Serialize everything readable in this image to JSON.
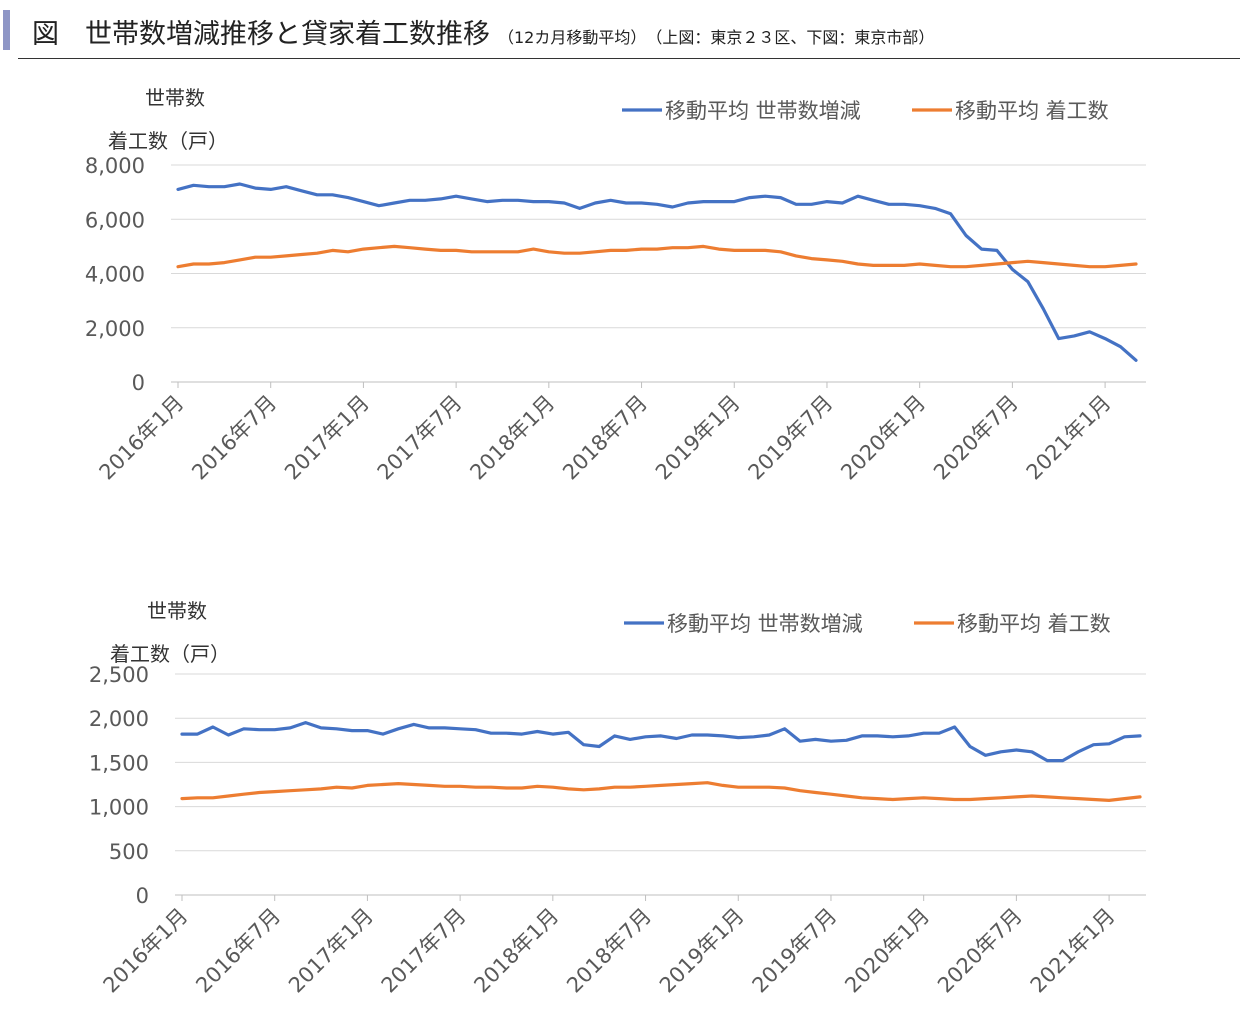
{
  "title": {
    "figure_label": "図",
    "main": "世帯数増減推移と貸家着工数推移",
    "sub": "（12カ月移動平均）　（上図：東京２３区、下図：東京市部）"
  },
  "colors": {
    "blue": "#4472c4",
    "orange": "#ed7d31",
    "grid": "#d9d9d9",
    "axis": "#bfbfbf",
    "text": "#595959"
  },
  "x_tick_labels": [
    "2016年1月",
    "2016年7月",
    "2017年1月",
    "2017年7月",
    "2018年1月",
    "2018年7月",
    "2019年1月",
    "2019年7月",
    "2020年1月",
    "2020年7月",
    "2021年1月"
  ],
  "chart_data": [
    {
      "type": "line",
      "ylabel_line1": "世帯数",
      "ylabel_line2": "着工数（戸）",
      "ylim": [
        0,
        8000
      ],
      "yticks": [
        0,
        2000,
        4000,
        6000,
        8000
      ],
      "ytick_labels": [
        "0",
        "2,000",
        "4,000",
        "6,000",
        "8,000"
      ],
      "grid": true,
      "legend_position": "top-right",
      "series": [
        {
          "name": "移動平均 世帯数増減",
          "color": "#4472c4",
          "values": [
            7100,
            7250,
            7200,
            7200,
            7300,
            7150,
            7100,
            7200,
            7050,
            6900,
            6900,
            6800,
            6650,
            6500,
            6600,
            6700,
            6700,
            6750,
            6850,
            6750,
            6650,
            6700,
            6700,
            6650,
            6650,
            6600,
            6400,
            6600,
            6700,
            6600,
            6600,
            6550,
            6450,
            6600,
            6650,
            6650,
            6650,
            6800,
            6850,
            6800,
            6550,
            6550,
            6650,
            6600,
            6850,
            6700,
            6550,
            6550,
            6500,
            6400,
            6200,
            5400,
            4900,
            4850,
            4150,
            3700,
            2700,
            1600,
            1700,
            1850,
            1600,
            1300,
            800
          ]
        },
        {
          "name": "移動平均 着工数",
          "color": "#ed7d31",
          "values": [
            4250,
            4350,
            4350,
            4400,
            4500,
            4600,
            4600,
            4650,
            4700,
            4750,
            4850,
            4800,
            4900,
            4950,
            5000,
            4950,
            4900,
            4850,
            4850,
            4800,
            4800,
            4800,
            4800,
            4900,
            4800,
            4750,
            4750,
            4800,
            4850,
            4850,
            4900,
            4900,
            4950,
            4950,
            5000,
            4900,
            4850,
            4850,
            4850,
            4800,
            4650,
            4550,
            4500,
            4450,
            4350,
            4300,
            4300,
            4300,
            4350,
            4300,
            4250,
            4250,
            4300,
            4350,
            4400,
            4450,
            4400,
            4350,
            4300,
            4250,
            4250,
            4300,
            4350
          ]
        }
      ]
    },
    {
      "type": "line",
      "ylabel_line1": "世帯数",
      "ylabel_line2": "着工数（戸）",
      "ylim": [
        0,
        2500
      ],
      "yticks": [
        0,
        500,
        1000,
        1500,
        2000,
        2500
      ],
      "ytick_labels": [
        "0",
        "500",
        "1,000",
        "1,500",
        "2,000",
        "2,500"
      ],
      "grid": true,
      "legend_position": "top-right",
      "series": [
        {
          "name": "移動平均 世帯数増減",
          "color": "#4472c4",
          "values": [
            1820,
            1820,
            1900,
            1810,
            1880,
            1870,
            1870,
            1890,
            1950,
            1890,
            1880,
            1860,
            1860,
            1820,
            1880,
            1930,
            1890,
            1890,
            1880,
            1870,
            1830,
            1830,
            1820,
            1850,
            1820,
            1840,
            1700,
            1680,
            1800,
            1760,
            1790,
            1800,
            1770,
            1810,
            1810,
            1800,
            1780,
            1790,
            1810,
            1880,
            1740,
            1760,
            1740,
            1750,
            1800,
            1800,
            1790,
            1800,
            1830,
            1830,
            1900,
            1680,
            1580,
            1620,
            1640,
            1620,
            1520,
            1520,
            1620,
            1700,
            1710,
            1790,
            1800
          ]
        },
        {
          "name": "移動平均 着工数",
          "color": "#ed7d31",
          "values": [
            1090,
            1100,
            1100,
            1120,
            1140,
            1160,
            1170,
            1180,
            1190,
            1200,
            1220,
            1210,
            1240,
            1250,
            1260,
            1250,
            1240,
            1230,
            1230,
            1220,
            1220,
            1210,
            1210,
            1230,
            1220,
            1200,
            1190,
            1200,
            1220,
            1220,
            1230,
            1240,
            1250,
            1260,
            1270,
            1240,
            1220,
            1220,
            1220,
            1210,
            1180,
            1160,
            1140,
            1120,
            1100,
            1090,
            1080,
            1090,
            1100,
            1090,
            1080,
            1080,
            1090,
            1100,
            1110,
            1120,
            1110,
            1100,
            1090,
            1080,
            1070,
            1090,
            1110
          ]
        }
      ]
    }
  ]
}
